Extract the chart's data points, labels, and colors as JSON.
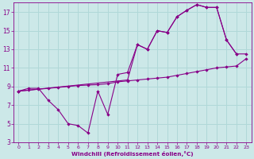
{
  "xlabel": "Windchill (Refroidissement éolien,°C)",
  "bg_color": "#cce8e8",
  "line_color": "#880088",
  "grid_color": "#b0d8d8",
  "xlim": [
    -0.5,
    23.5
  ],
  "ylim": [
    3,
    18
  ],
  "xticks": [
    0,
    1,
    2,
    3,
    4,
    5,
    6,
    7,
    8,
    9,
    10,
    11,
    12,
    13,
    14,
    15,
    16,
    17,
    18,
    19,
    20,
    21,
    22,
    23
  ],
  "yticks": [
    3,
    5,
    7,
    9,
    11,
    13,
    15,
    17
  ],
  "line1_x": [
    0,
    1,
    2,
    3,
    4,
    5,
    6,
    7,
    8,
    9,
    10,
    11,
    12,
    13,
    14,
    15,
    16,
    17,
    18,
    19,
    20,
    21,
    22
  ],
  "line1_y": [
    8.5,
    8.8,
    8.8,
    7.5,
    6.5,
    5.0,
    4.8,
    4.0,
    8.5,
    6.0,
    10.3,
    10.5,
    13.5,
    13.0,
    15.0,
    14.8,
    16.5,
    17.2,
    17.8,
    17.5,
    17.5,
    14.0,
    12.5
  ],
  "line2_x": [
    0,
    1,
    2,
    3,
    4,
    5,
    6,
    7,
    8,
    9,
    10,
    11,
    12,
    13,
    14,
    15,
    16,
    17,
    18,
    19,
    20,
    21,
    22,
    23
  ],
  "line2_y": [
    8.5,
    8.6,
    8.7,
    8.8,
    8.9,
    9.0,
    9.1,
    9.15,
    9.2,
    9.3,
    9.5,
    9.6,
    9.7,
    9.8,
    9.9,
    10.0,
    10.2,
    10.4,
    10.6,
    10.8,
    11.0,
    11.1,
    11.2,
    12.0
  ],
  "line3_x": [
    0,
    11,
    12,
    13,
    14,
    15,
    16,
    17,
    18,
    19,
    20,
    21,
    22,
    23
  ],
  "line3_y": [
    8.5,
    9.7,
    13.5,
    13.0,
    15.0,
    14.8,
    16.5,
    17.2,
    17.8,
    17.5,
    17.5,
    14.0,
    12.5,
    12.5
  ]
}
